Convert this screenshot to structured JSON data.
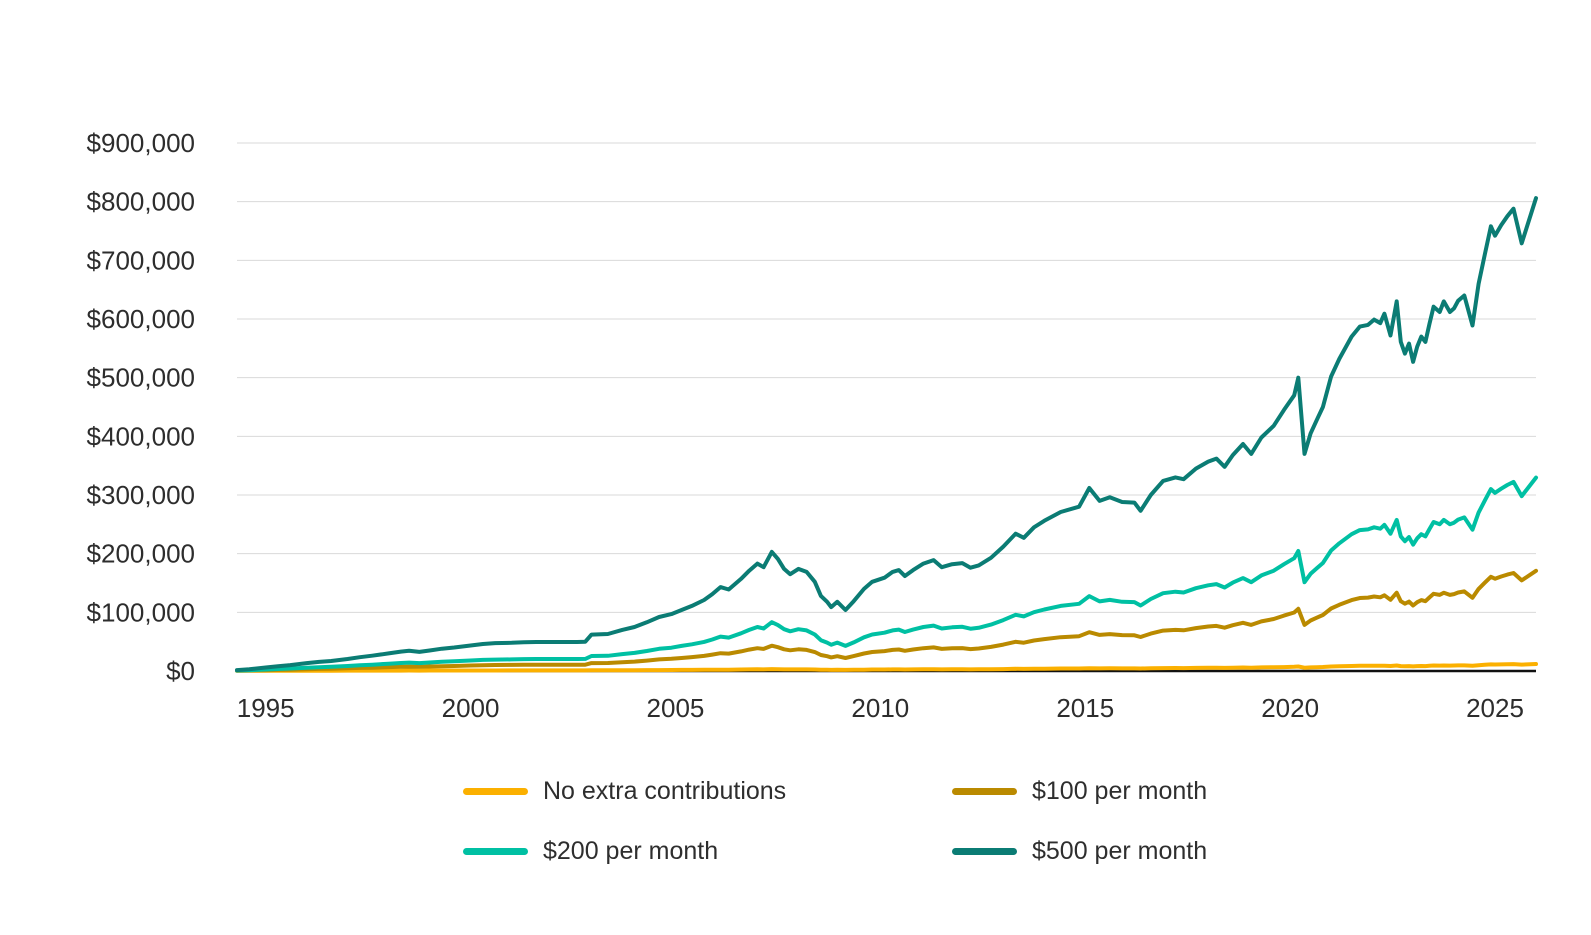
{
  "chart_data": {
    "type": "line",
    "title": "",
    "xlabel": "",
    "ylabel": "",
    "value_unit": "thousand dollars",
    "x_unit": "year",
    "x_range": [
      1994.3,
      2026
    ],
    "x_ticks": [
      1995,
      2000,
      2005,
      2010,
      2015,
      2020,
      2025
    ],
    "y_axis": {
      "min_thousands": 0,
      "max_thousands": 900,
      "tick_step_thousands": 100,
      "tick_prefix": "$"
    },
    "grid": "horizontal",
    "legend_position": "bottom",
    "style": {
      "grid_color": "#dadada",
      "axis_color": "#111111",
      "text_color": "#2d2d2d",
      "background": "#ffffff",
      "line_width": 4
    },
    "x": [
      1994.3,
      1994.6,
      1995,
      1995.3,
      1995.6,
      1996,
      1996.3,
      1996.6,
      1997,
      1997.3,
      1997.6,
      1998,
      1998.3,
      1998.5,
      1998.75,
      1999,
      1999.3,
      1999.6,
      2000,
      2000.3,
      2000.6,
      2001,
      2001.3,
      2001.6,
      2002,
      2002.3,
      2002.6,
      2002.8,
      2002.95,
      2003.35,
      2003.7,
      2004,
      2004.3,
      2004.6,
      2004.9,
      2005.15,
      2005.4,
      2005.7,
      2005.9,
      2006.1,
      2006.3,
      2006.6,
      2006.8,
      2007,
      2007.15,
      2007.35,
      2007.5,
      2007.65,
      2007.8,
      2008,
      2008.2,
      2008.4,
      2008.55,
      2008.7,
      2008.8,
      2008.95,
      2009.15,
      2009.35,
      2009.6,
      2009.8,
      2010.1,
      2010.3,
      2010.45,
      2010.6,
      2010.8,
      2011.05,
      2011.3,
      2011.5,
      2011.75,
      2012,
      2012.2,
      2012.4,
      2012.7,
      2013,
      2013.3,
      2013.5,
      2013.75,
      2014,
      2014.4,
      2014.85,
      2015.1,
      2015.35,
      2015.6,
      2015.9,
      2016.2,
      2016.35,
      2016.6,
      2016.9,
      2017.2,
      2017.4,
      2017.7,
      2018,
      2018.2,
      2018.4,
      2018.6,
      2018.85,
      2019.05,
      2019.3,
      2019.6,
      2019.85,
      2020.1,
      2020.2,
      2020.35,
      2020.5,
      2020.65,
      2020.8,
      2021,
      2021.2,
      2021.5,
      2021.7,
      2021.9,
      2022.05,
      2022.2,
      2022.3,
      2022.45,
      2022.6,
      2022.7,
      2022.8,
      2022.9,
      2023,
      2023.1,
      2023.2,
      2023.3,
      2023.4,
      2023.5,
      2023.65,
      2023.75,
      2023.9,
      2024,
      2024.1,
      2024.25,
      2024.45,
      2024.6,
      2024.75,
      2024.9,
      2025,
      2025.15,
      2025.3,
      2025.45,
      2025.65,
      2026
    ],
    "series": [
      {
        "name": "No extra contributions",
        "color": "#FBB000",
        "values_thousands": [
          0.3,
          0.3,
          0.3,
          0.4,
          0.4,
          0.4,
          0.5,
          0.5,
          0.6,
          0.6,
          0.6,
          0.7,
          0.7,
          0.8,
          0.7,
          0.8,
          0.8,
          0.8,
          0.9,
          0.9,
          0.9,
          1,
          1,
          1,
          1,
          1,
          1,
          1,
          1.2,
          1.2,
          1.3,
          1.3,
          1.5,
          1.6,
          1.7,
          1.8,
          1.9,
          2,
          2.2,
          2.3,
          2.3,
          2.5,
          2.7,
          2.9,
          2.8,
          3.2,
          3,
          2.8,
          2.7,
          2.8,
          2.7,
          2.5,
          2.1,
          2,
          1.8,
          2,
          1.8,
          2,
          2.3,
          2.5,
          2.6,
          2.7,
          2.8,
          2.6,
          2.8,
          2.9,
          3,
          2.8,
          2.9,
          2.9,
          2.8,
          2.9,
          3.1,
          3.3,
          3.7,
          3.6,
          3.8,
          4,
          4.2,
          4.3,
          4.8,
          4.5,
          4.6,
          4.5,
          4.4,
          4.2,
          4.6,
          5,
          5.1,
          5,
          5.3,
          5.5,
          5.5,
          5.3,
          5.6,
          5.9,
          5.7,
          6.1,
          6.4,
          6.7,
          7.1,
          7.6,
          5.7,
          6.2,
          6.5,
          6.8,
          7.6,
          8,
          8.6,
          8.8,
          8.9,
          9,
          8.9,
          9.1,
          8.6,
          9.4,
          8.4,
          8.1,
          8.4,
          7.9,
          8.3,
          8.6,
          8.4,
          8.9,
          9.3,
          9.2,
          9.4,
          9.2,
          9.3,
          9.5,
          9.6,
          8.8,
          9.9,
          10.6,
          11.3,
          11.1,
          11.3,
          11.6,
          11.8,
          10.9,
          12
        ]
      },
      {
        "name": "$100 per month",
        "color": "#BA8A00",
        "values_thousands": [
          0.5,
          0.8,
          1.4,
          1.9,
          2.3,
          3,
          3.5,
          3.8,
          4.6,
          5.2,
          5.7,
          6.6,
          7.2,
          7.5,
          7.1,
          7.6,
          8.2,
          8.6,
          9.4,
          9.9,
          10.2,
          10.4,
          10.6,
          10.7,
          10.7,
          10.7,
          10.7,
          10.8,
          13.4,
          13.6,
          15,
          16,
          17.8,
          19.7,
          20.8,
          22.2,
          23.7,
          25.8,
          28,
          30.4,
          29.6,
          33.4,
          36.4,
          38.9,
          37.6,
          43.2,
          40.6,
          37,
          35.2,
          37,
          36,
          32.4,
          27.3,
          25.2,
          23.2,
          25.2,
          22.2,
          25.4,
          29.8,
          32.4,
          33.9,
          36,
          36.6,
          34.5,
          36.6,
          38.9,
          40.2,
          37.6,
          38.7,
          39.1,
          37.4,
          38.3,
          41.1,
          45,
          49.8,
          48.3,
          52,
          54.4,
          57.6,
          59.4,
          66.2,
          61.6,
          62.9,
          61.2,
          60.9,
          58,
          63.7,
          68.8,
          70.1,
          69.4,
          73.2,
          75.8,
          76.8,
          73.8,
          78.1,
          82.1,
          78.6,
          84.5,
          88.7,
          94.4,
          99.7,
          106.1,
          78.6,
          86,
          90.8,
          95.4,
          106.5,
          112.8,
          120.9,
          124.4,
          125.1,
          127,
          125.7,
          129.1,
          121.3,
          133.5,
          118.9,
          114.7,
          118.3,
          111.7,
          117.2,
          120.9,
          118.9,
          125.5,
          131.6,
          129.8,
          133.5,
          129.8,
          131,
          133.8,
          135.7,
          124.8,
          139.9,
          150.5,
          160.6,
          157.3,
          161,
          164.3,
          167,
          154.5,
          170.8
        ]
      },
      {
        "name": "$200 per month",
        "color": "#00C0A3",
        "values_thousands": [
          0.8,
          1.4,
          2.6,
          3.4,
          4.2,
          5.6,
          6.5,
          7.1,
          8.6,
          9.8,
          10.8,
          12.4,
          13.6,
          14.3,
          13.4,
          14.5,
          15.7,
          16.5,
          17.9,
          18.9,
          19.5,
          19.8,
          20.2,
          20.4,
          20.4,
          20.4,
          20.4,
          20.6,
          25.5,
          25.9,
          28.8,
          30.8,
          34.1,
          37.8,
          39.8,
          42.7,
          45.5,
          49.6,
          53.7,
          58.6,
          57,
          64.3,
          70,
          75,
          72.5,
          83.1,
          78.2,
          71.3,
          67.6,
          71.3,
          69.2,
          62.3,
          52.5,
          48.4,
          44.7,
          48.4,
          42.7,
          48.8,
          57.4,
          62.3,
          65.2,
          69.2,
          70.5,
          66.4,
          70.5,
          75,
          77.4,
          72.5,
          74.5,
          75.3,
          72.1,
          73.7,
          79.1,
          86.8,
          95.8,
          93,
          100.3,
          104.8,
          110.9,
          114.6,
          127.7,
          118.7,
          121.2,
          117.9,
          117.4,
          111.7,
          122.8,
          132.6,
          135.1,
          133.8,
          141.2,
          146.1,
          148.1,
          142.4,
          150.6,
          158.3,
          151.4,
          162.9,
          171,
          182,
          192.3,
          204.6,
          151.4,
          165.7,
          175.1,
          184.1,
          205.4,
          217.6,
          233.2,
          240.1,
          241.3,
          245,
          242.5,
          249.1,
          234,
          257.6,
          229.4,
          221.3,
          228.2,
          215.5,
          226.2,
          233.2,
          229.4,
          242.1,
          254,
          250.3,
          257.6,
          250.3,
          252.8,
          258.1,
          261.8,
          240.9,
          270,
          290.4,
          310,
          303.5,
          310.8,
          317,
          322.3,
          298.1,
          329.6
        ]
      },
      {
        "name": "$500 per month",
        "color": "#0B7C74",
        "values_thousands": [
          1.5,
          3,
          6,
          8,
          10,
          13.5,
          15.5,
          17,
          20.5,
          23.5,
          26,
          30,
          33,
          34.5,
          32.5,
          35,
          38,
          40,
          43.5,
          46,
          47.5,
          48,
          49,
          49.5,
          49.5,
          49.5,
          49.5,
          50,
          62,
          63,
          70,
          75,
          83,
          92,
          97,
          104,
          111,
          121,
          131,
          143,
          139,
          157,
          171,
          183,
          177,
          203,
          191,
          174,
          165,
          174,
          169,
          152,
          128,
          118,
          109,
          118,
          104,
          119,
          140,
          152,
          159,
          169,
          172,
          162,
          172,
          183,
          189,
          177,
          182,
          184,
          176,
          180,
          193,
          212,
          234,
          227,
          245,
          256,
          271,
          280,
          312,
          290,
          296,
          288,
          287,
          273,
          300,
          324,
          330,
          327,
          345,
          357,
          362,
          348,
          368,
          387,
          370,
          398,
          418,
          445,
          470,
          500,
          370,
          405,
          428,
          450,
          502,
          532,
          570,
          587,
          590,
          599,
          593,
          609,
          572,
          630,
          561,
          541,
          558,
          527,
          553,
          570,
          561,
          592,
          621,
          612,
          630,
          612,
          618,
          631,
          640,
          589,
          660,
          710,
          758,
          742,
          760,
          775,
          788,
          729,
          806
        ]
      }
    ]
  },
  "legend": {
    "items": [
      {
        "label": "No extra contributions"
      },
      {
        "label": "$100 per month"
      },
      {
        "label": "$200 per month"
      },
      {
        "label": "$500 per month"
      }
    ]
  }
}
